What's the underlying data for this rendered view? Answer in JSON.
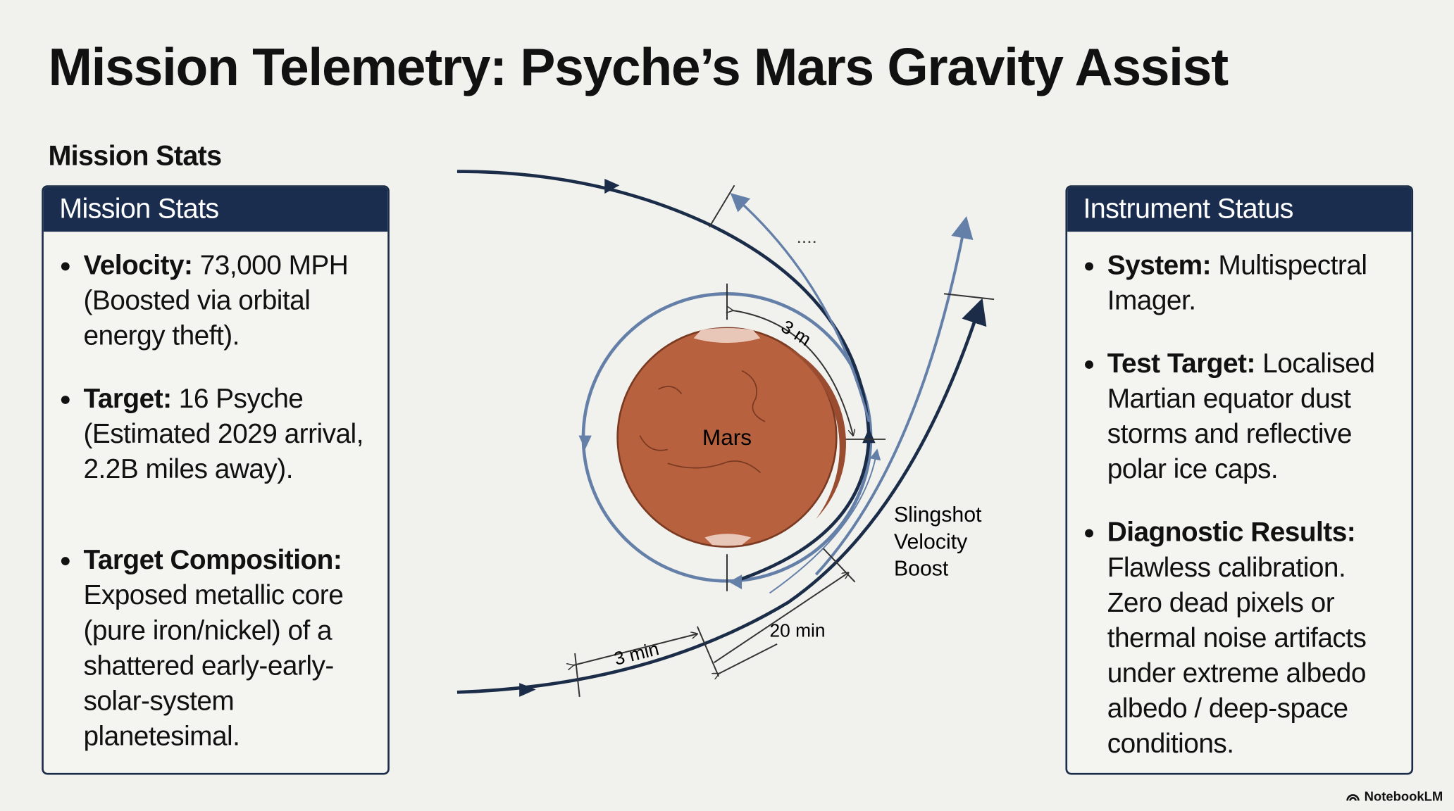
{
  "title": "Mission Telemetry: Psyche’s Mars Gravity Assist",
  "section_heading": "Mission Stats",
  "left_panel": {
    "title": "Mission Stats",
    "items": [
      {
        "label": "Velocity:",
        "text": "73,000 MPH (Boosted via orbital energy theft)."
      },
      {
        "label": "Target:",
        "text": "16 Psyche (Estimated 2029 arrival, 2.2B miles away)."
      },
      {
        "label": "Target Composition:",
        "text": "Exposed metallic core (pure iron/nickel) of a shattered early-early-solar-system planetesimal."
      }
    ]
  },
  "right_panel": {
    "title": "Instrument Status",
    "items": [
      {
        "label": "System:",
        "text": "Multispectral Imager."
      },
      {
        "label": "Test Target:",
        "text": "Localised Martian equator dust storms and reflective polar ice caps."
      },
      {
        "label": "Diagnostic Results:",
        "text": "Flawless calibration. Zero dead pixels or thermal noise artifacts under extreme albedo albedo / deep-space conditions."
      }
    ]
  },
  "diagram": {
    "planet": "Mars",
    "arc_time": "3 m",
    "ellipsis": "....",
    "boost": [
      "Slingshot",
      "Velocity",
      "Boost"
    ],
    "approach_time": "3 min",
    "exit_time": "20 min"
  },
  "footer": "NotebookLM"
}
